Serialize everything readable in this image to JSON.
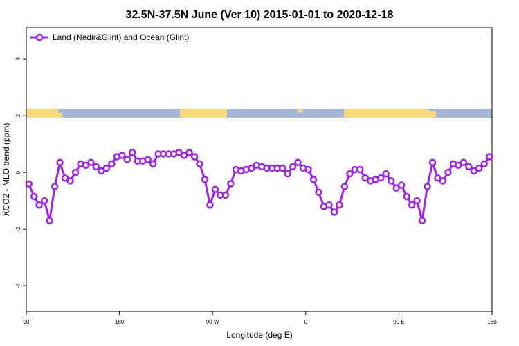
{
  "chart_data": {
    "type": "line",
    "title": "32.5N-37.5N June (Ver 10)   2015-01-01 to 2020-12-18",
    "xlabel": "Longitude (deg E)",
    "ylabel": "XCO2 - MLO trend (ppm)",
    "xlim": [
      90,
      540
    ],
    "ylim": [
      -4.9,
      5.1
    ],
    "xticks": [
      90,
      180,
      {
        "value": 270,
        "label": "90 W"
      },
      {
        "value": 360,
        "label": "0"
      },
      {
        "value": 450,
        "label": "90 E"
      },
      {
        "value": 540,
        "label": "180"
      }
    ],
    "yticks": [
      -4,
      -2,
      0,
      2,
      4
    ],
    "legend": "top-left",
    "x": [
      92.5,
      97.5,
      102.5,
      107.5,
      112.5,
      117.5,
      122.5,
      127.5,
      132.5,
      137.5,
      142.5,
      147.5,
      152.5,
      157.5,
      162.5,
      167.5,
      172.5,
      177.5,
      182.5,
      187.5,
      192.5,
      197.5,
      202.5,
      207.5,
      212.5,
      217.5,
      222.5,
      227.5,
      232.5,
      237.5,
      242.5,
      247.5,
      252.5,
      257.5,
      262.5,
      267.5,
      272.5,
      277.5,
      282.5,
      287.5,
      292.5,
      297.5,
      302.5,
      307.5,
      312.5,
      317.5,
      322.5,
      327.5,
      332.5,
      337.5,
      342.5,
      347.5,
      352.5,
      357.5,
      362.5,
      367.5,
      372.5,
      377.5,
      382.5,
      387.5,
      392.5,
      397.5,
      402.5,
      407.5,
      412.5,
      417.5,
      422.5,
      427.5,
      432.5,
      437.5,
      442.5,
      447.5,
      452.5,
      457.5,
      462.5,
      467.5,
      472.5,
      477.5,
      482.5,
      487.5,
      492.5,
      497.5,
      502.5,
      507.5,
      512.5,
      517.5,
      522.5,
      527.5,
      532.5,
      537.5
    ],
    "series": [
      {
        "name": "Land (Nadir&Glint) and Ocean (Glint)",
        "color": "#a020f0",
        "values": [
          -0.41,
          -0.85,
          -1.15,
          -1.0,
          -1.7,
          -0.5,
          0.35,
          -0.2,
          -0.3,
          0.0,
          0.3,
          0.25,
          0.35,
          0.2,
          0.05,
          0.15,
          0.3,
          0.55,
          0.6,
          0.45,
          0.7,
          0.4,
          0.4,
          0.45,
          0.3,
          0.65,
          0.65,
          0.65,
          0.65,
          0.7,
          0.6,
          0.7,
          0.55,
          0.3,
          -0.25,
          -1.15,
          -0.6,
          -0.8,
          -0.8,
          -0.4,
          0.1,
          0.05,
          0.1,
          0.15,
          0.25,
          0.2,
          0.15,
          0.15,
          0.15,
          0.15,
          -0.05,
          0.2,
          0.35,
          0.15,
          0.1,
          -0.25,
          -0.7,
          -1.2,
          -1.15,
          -1.4,
          -1.15,
          -0.5,
          -0.05,
          0.1,
          0.1,
          -0.2,
          -0.3,
          -0.25,
          -0.2,
          -0.05,
          -0.3,
          -0.55,
          -0.45,
          -0.85,
          -1.15,
          -1.0,
          -1.7,
          -0.5,
          0.35,
          -0.2,
          -0.3,
          0.0,
          0.3,
          0.25,
          0.35,
          0.2,
          0.05,
          0.15,
          0.3,
          0.55
        ]
      }
    ]
  }
}
